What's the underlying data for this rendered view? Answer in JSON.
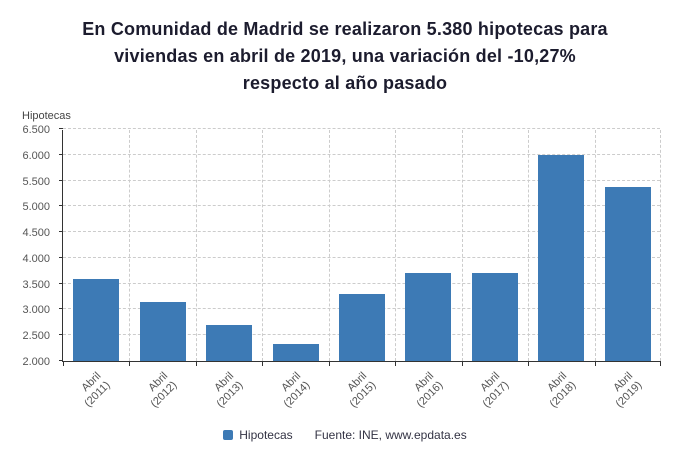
{
  "title": {
    "lines": [
      "En Comunidad de Madrid se realizaron 5.380 hipotecas para",
      "viviendas en abril de 2019, una variación del -10,27%",
      "respecto al año pasado"
    ]
  },
  "chart_data": {
    "type": "bar",
    "title": "En Comunidad de Madrid se realizaron 5.380 hipotecas para viviendas en abril de 2019, una variación del -10,27% respecto al año pasado",
    "ylabel": "Hipotecas",
    "xlabel": "",
    "categories": [
      "Abril (2011)",
      "Abril (2012)",
      "Abril (2013)",
      "Abril (2014)",
      "Abril (2015)",
      "Abril (2016)",
      "Abril (2017)",
      "Abril (2018)",
      "Abril (2019)"
    ],
    "values": [
      3600,
      3140,
      2690,
      2330,
      3300,
      3700,
      3700,
      6000,
      5380
    ],
    "ylim": [
      2000,
      6500
    ],
    "ytick_step": 500,
    "bar_color": "#3d7ab5",
    "grid": true,
    "legend_position": "bottom",
    "legend": [
      "Hipotecas"
    ]
  },
  "footer": {
    "legend_label": "Hipotecas",
    "source": "Fuente: INE, www.epdata.es"
  }
}
